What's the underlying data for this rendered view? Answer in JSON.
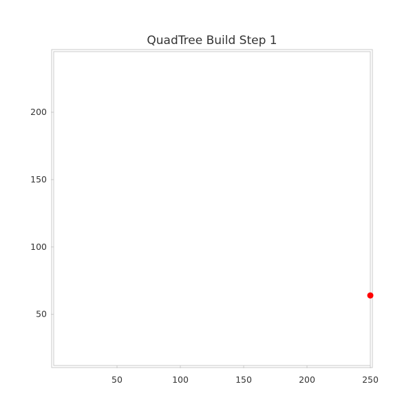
{
  "chart_data": {
    "type": "scatter",
    "title": "QuadTree Build Step 1",
    "xlabel": "",
    "ylabel": "",
    "xlim": [
      0,
      250
    ],
    "ylim": [
      12,
      245
    ],
    "x_ticks": [
      50,
      100,
      150,
      200,
      250
    ],
    "y_ticks": [
      50,
      100,
      150,
      200
    ],
    "grid": false,
    "series": [
      {
        "color": "#ff0000",
        "points": [
          {
            "x": 250,
            "y": 64
          }
        ]
      }
    ],
    "colors": {
      "frame": "#c8c8c8",
      "text": "#333333",
      "point": "#ff0000"
    }
  }
}
